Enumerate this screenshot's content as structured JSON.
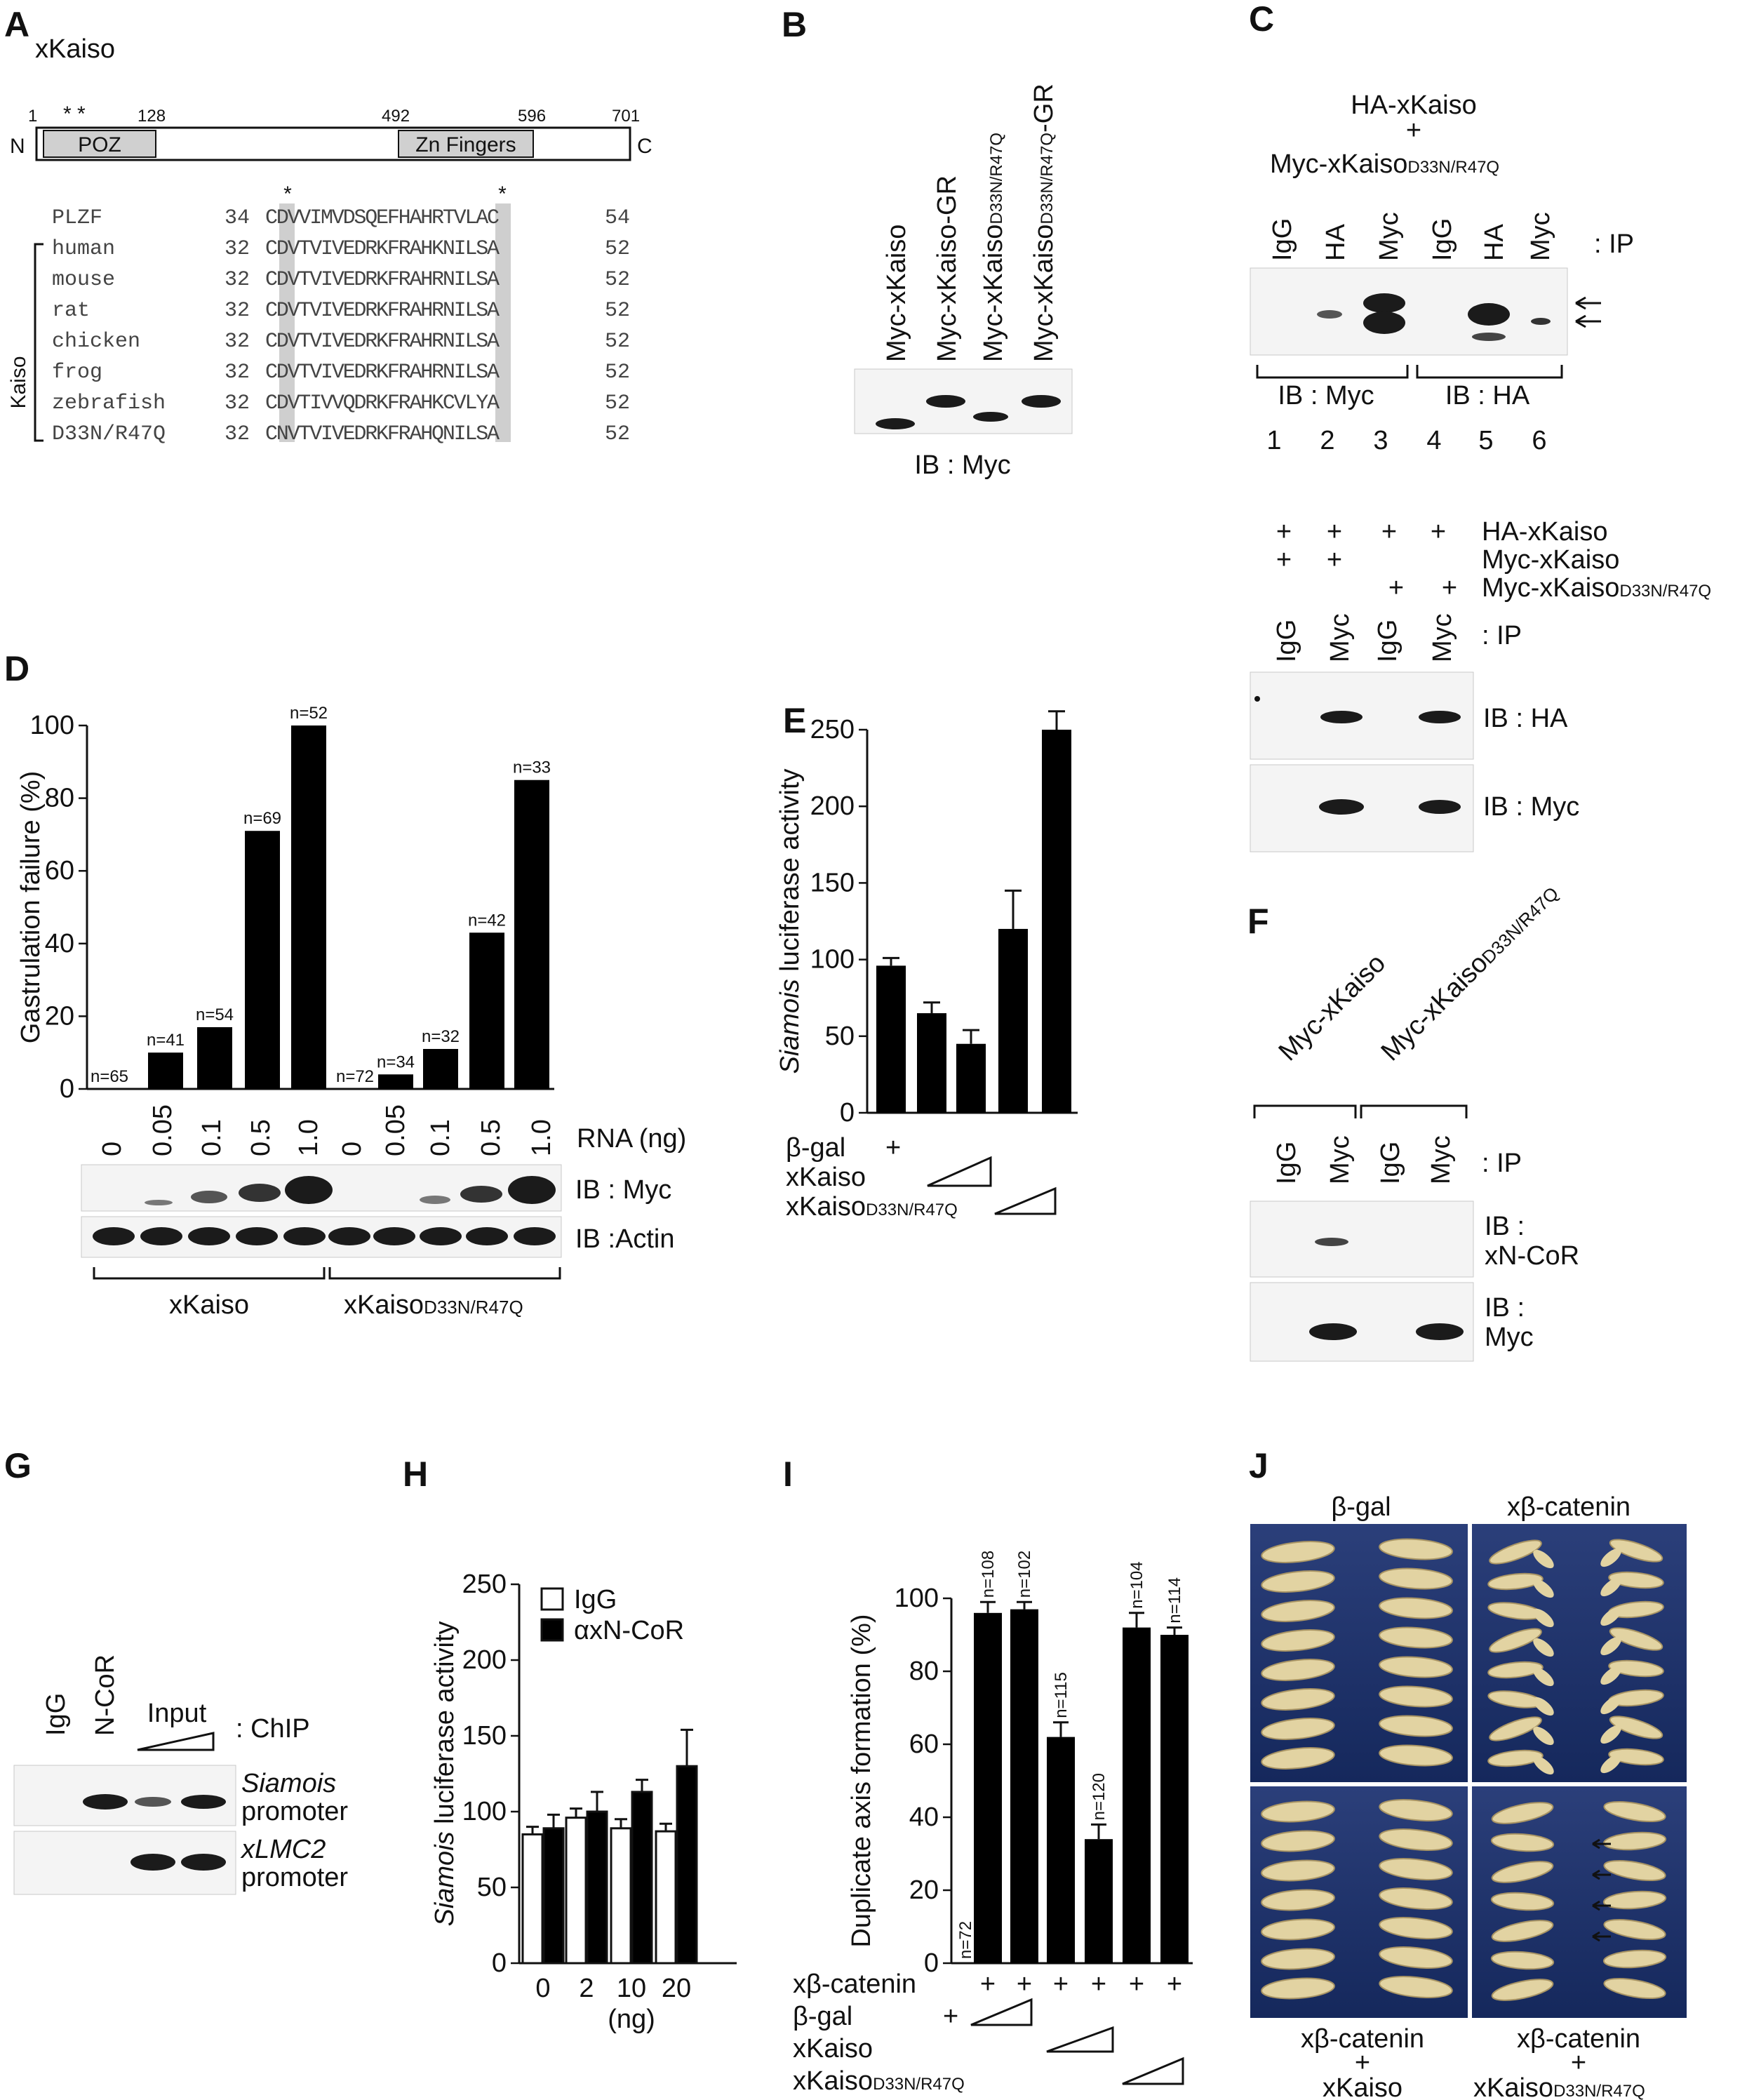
{
  "panels": {
    "A": {
      "letter": "A",
      "title": "xKaiso",
      "positions": [
        "1",
        "128",
        "492",
        "596",
        "701"
      ],
      "stars": "* *",
      "n_label": "N",
      "c_label": "C",
      "domains": [
        "POZ",
        "Zn Fingers"
      ],
      "align_stars": [
        "*",
        "*"
      ],
      "kaiso_group": "Kaiso",
      "alignment": [
        {
          "name": "PLZF",
          "start": "34",
          "seq": "CDVVIMVDSQEFHAHRTVLAC",
          "end": "54"
        },
        {
          "name": "human",
          "start": "32",
          "seq": "CDVTVIVEDRKFRAHKNILSA",
          "end": "52"
        },
        {
          "name": "mouse",
          "start": "32",
          "seq": "CDVTVIVEDRKFRAHRNILSA",
          "end": "52"
        },
        {
          "name": "rat",
          "start": "32",
          "seq": "CDVTVIVEDRKFRAHRNILSA",
          "end": "52"
        },
        {
          "name": "chicken",
          "start": "32",
          "seq": "CDVTVIVEDRKFRAHRNILSA",
          "end": "52"
        },
        {
          "name": "frog",
          "start": "32",
          "seq": "CDVTVIVEDRKFRAHRNILSA",
          "end": "52"
        },
        {
          "name": "zebrafish",
          "start": "32",
          "seq": "CDVTIVVQDRKFRAHKCVLYA",
          "end": "52"
        },
        {
          "name": "D33N/R47Q",
          "start": "32",
          "seq": "CNVTVIVEDRKFRAHQNILSA",
          "end": "52"
        }
      ]
    },
    "B": {
      "letter": "B",
      "lanes": [
        {
          "main": "Myc-xKaiso",
          "sub": "",
          "tail": ""
        },
        {
          "main": "Myc-xKaiso-GR",
          "sub": "",
          "tail": ""
        },
        {
          "main": "Myc-xKaiso",
          "sub": "D33N/R47Q",
          "tail": ""
        },
        {
          "main": "Myc-xKaiso",
          "sub": "D33N/R47Q",
          "tail": "-GR"
        }
      ],
      "ib": "IB : Myc"
    },
    "C": {
      "letter": "C",
      "top_title1": "HA-xKaiso",
      "top_plus": "+",
      "top_title2": "Myc-xKaiso",
      "top_title2_sub": "D33N/R47Q",
      "ip_lanes": [
        "IgG",
        "HA",
        "Myc",
        "IgG",
        "HA",
        "Myc"
      ],
      "ip_label": ": IP",
      "ib_left": "IB : Myc",
      "ib_right": "IB : HA",
      "lane_numbers": [
        "1",
        "2",
        "3",
        "4",
        "5",
        "6"
      ],
      "plus": "+",
      "bottom_rows": [
        "HA-xKaiso",
        "Myc-xKaiso",
        "Myc-xKaiso"
      ],
      "bottom_row3_sub": "D33N/R47Q",
      "bottom_ip": [
        "IgG",
        "Myc",
        "IgG",
        "Myc"
      ],
      "bottom_ip_label": ": IP",
      "bottom_ib": [
        "IB : HA",
        "IB : Myc"
      ]
    },
    "D": {
      "letter": "D",
      "rna_doses": [
        "0",
        "0.05",
        "0.1",
        "0.5",
        "1.0",
        "0",
        "0.05",
        "0.1",
        "0.5",
        "1.0"
      ],
      "rna_label": "RNA (ng)",
      "ib_rows": [
        "IB : Myc",
        "IB :Actin"
      ],
      "groups": [
        "xKaiso",
        "xKaiso"
      ],
      "group2_sub": "D33N/R47Q"
    },
    "E": {
      "letter": "E",
      "row_bgal": "β-gal",
      "row_xkaiso": "xKaiso",
      "row_mut": "xKaiso",
      "row_mut_sub": "D33N/R47Q",
      "plus": "+"
    },
    "F": {
      "letter": "F",
      "groups": [
        "Myc-xKaiso",
        "Myc-xKaiso"
      ],
      "group2_sub": "D33N/R47Q",
      "ip_lanes": [
        "IgG",
        "Myc",
        "IgG",
        "Myc"
      ],
      "ip_label": ": IP",
      "ib1": [
        "IB :",
        "xN-CoR"
      ],
      "ib2": [
        "IB :",
        "Myc"
      ]
    },
    "G": {
      "letter": "G",
      "lanes": [
        "IgG",
        "N-CoR",
        "Input"
      ],
      "chip_label": ": ChIP",
      "rows": [
        {
          "gene": "Siamois",
          "word": "promoter"
        },
        {
          "gene": "xLMC2",
          "word": "promoter"
        }
      ]
    },
    "H": {
      "letter": "H"
    },
    "I": {
      "letter": "I",
      "rows": [
        "xβ-catenin",
        "β-gal",
        "xKaiso",
        "xKaiso"
      ],
      "row4_sub": "D33N/R47Q",
      "plus": "+"
    },
    "J": {
      "letter": "J",
      "col_titles": [
        "β-gal",
        "xβ-catenin"
      ],
      "bottom_left": [
        "xβ-catenin",
        "+",
        "xKaiso"
      ],
      "bottom_right": [
        "xβ-catenin",
        "+",
        "xKaiso"
      ],
      "bottom_right_sub": "D33N/R47Q"
    }
  },
  "chart_data": [
    {
      "panel": "D",
      "type": "bar",
      "ylabel": "Gastrulation failure (%)",
      "ylim": [
        0,
        100
      ],
      "yticks": [
        0,
        20,
        40,
        60,
        80,
        100
      ],
      "values": [
        0,
        10,
        17,
        71,
        100,
        0,
        4,
        11,
        43,
        85
      ],
      "labels": [
        "n=65",
        "n=41",
        "n=54",
        "n=69",
        "n=52",
        "n=72",
        "n=34",
        "n=32",
        "n=42",
        "n=33"
      ],
      "bar_color": "#000000"
    },
    {
      "panel": "E",
      "type": "bar",
      "ylabel": "Siamois luciferase activity",
      "ylim": [
        0,
        250
      ],
      "yticks": [
        0,
        50,
        100,
        150,
        200,
        250
      ],
      "values": [
        96,
        65,
        45,
        120,
        250
      ],
      "errors": [
        5,
        7,
        9,
        25,
        12
      ],
      "bar_color": "#000000"
    },
    {
      "panel": "H",
      "type": "bar",
      "ylabel": "Siamois luciferase activity",
      "ylim": [
        0,
        250
      ],
      "yticks": [
        0,
        50,
        100,
        150,
        200,
        250
      ],
      "categories": [
        "0",
        "2",
        "10",
        "20"
      ],
      "xlabel": "(ng)",
      "series": [
        {
          "name": "IgG",
          "values": [
            85,
            96,
            89,
            87
          ],
          "errors": [
            5,
            6,
            6,
            5
          ],
          "color": "#ffffff"
        },
        {
          "name": "αxN-CoR",
          "values": [
            89,
            100,
            113,
            130
          ],
          "errors": [
            9,
            13,
            8,
            24
          ],
          "color": "#000000"
        }
      ],
      "legend": "top-left"
    },
    {
      "panel": "I",
      "type": "bar",
      "ylabel": "Duplicate axis formation (%)",
      "ylim": [
        0,
        100
      ],
      "yticks": [
        0,
        20,
        40,
        60,
        80,
        100
      ],
      "values": [
        0,
        96,
        97,
        62,
        34,
        92,
        90
      ],
      "errors": [
        0,
        3,
        2,
        4,
        4,
        4,
        2
      ],
      "labels": [
        "n=72",
        "n=108",
        "n=102",
        "n=115",
        "n=120",
        "n=104",
        "n=114"
      ],
      "bar_color": "#000000"
    }
  ]
}
